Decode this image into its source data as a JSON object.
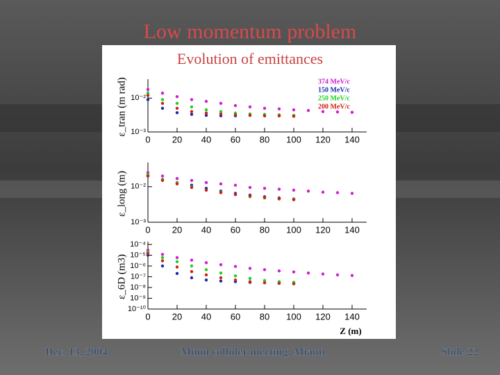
{
  "slide": {
    "title": "Low momentum problem",
    "footer": [
      "Dec. 13, 2004",
      "Muon collider meeting, Miami",
      "Slide 22"
    ]
  },
  "chart_data": [
    {
      "type": "line",
      "title": "Evolution of emittances",
      "ylabel": "ε_tran (m rad)",
      "log_y": true,
      "x": [
        0,
        10,
        20,
        30,
        40,
        50,
        60,
        70,
        80,
        90,
        100,
        110,
        120,
        130,
        140
      ],
      "xlim": [
        0,
        150
      ],
      "xticks": [
        0,
        20,
        40,
        60,
        80,
        100,
        120,
        140
      ],
      "ylim": [
        0.001,
        0.03
      ],
      "yticks": [
        {
          "value": 0.01,
          "label": "10⁻²"
        },
        {
          "value": 0.001,
          "label": "10⁻³"
        }
      ],
      "legend": "upper right",
      "series": [
        {
          "name": "374 MeV/c",
          "color": "#d020d0",
          "values": [
            0.018,
            0.014,
            0.011,
            0.009,
            0.008,
            0.007,
            0.006,
            0.0055,
            0.005,
            0.0048,
            0.0045,
            0.0043,
            0.004,
            0.0039,
            0.0038
          ]
        },
        {
          "name": "150 MeV/c",
          "color": "#1a2ab0",
          "values": [
            0.009,
            0.005,
            0.0037,
            0.0033,
            0.0031,
            0.003,
            0.003,
            0.0031,
            0.003,
            0.003,
            0.003,
            null,
            null,
            null,
            null
          ]
        },
        {
          "name": "250 MeV/c",
          "color": "#20d020",
          "values": [
            0.014,
            0.009,
            0.007,
            0.0055,
            0.0045,
            0.004,
            0.0036,
            0.0034,
            0.0033,
            0.0032,
            0.0031,
            null,
            null,
            null,
            null
          ]
        },
        {
          "name": "200 MeV/c",
          "color": "#d02010",
          "values": [
            0.012,
            0.007,
            0.005,
            0.004,
            0.0036,
            0.0034,
            0.0032,
            0.0031,
            0.003,
            0.003,
            0.0029,
            null,
            null,
            null,
            null
          ]
        }
      ]
    },
    {
      "type": "line",
      "ylabel": "ε_long (m)",
      "log_y": true,
      "x": [
        0,
        10,
        20,
        30,
        40,
        50,
        60,
        70,
        80,
        90,
        100,
        110,
        120,
        130,
        140
      ],
      "xlim": [
        0,
        150
      ],
      "xticks": [
        0,
        20,
        40,
        60,
        80,
        100,
        120,
        140
      ],
      "ylim": [
        0.001,
        0.04
      ],
      "yticks": [
        {
          "value": 0.01,
          "label": "10⁻²"
        },
        {
          "value": 0.001,
          "label": "10⁻³"
        }
      ],
      "series": [
        {
          "color": "#d020d0",
          "values": [
            0.025,
            0.02,
            0.017,
            0.015,
            0.013,
            0.012,
            0.011,
            0.0095,
            0.009,
            0.0085,
            0.008,
            0.0075,
            0.007,
            0.0068,
            0.0065
          ]
        },
        {
          "color": "#1a2ab0",
          "values": [
            0.02,
            0.016,
            0.013,
            0.011,
            0.009,
            0.0075,
            0.0065,
            0.0058,
            0.0052,
            0.0048,
            0.0045,
            null,
            null,
            null,
            null
          ]
        },
        {
          "color": "#20d020",
          "values": [
            0.022,
            0.016,
            0.013,
            0.01,
            0.008,
            0.007,
            0.006,
            0.0052,
            0.0048,
            0.0045,
            0.0044,
            null,
            null,
            null,
            null
          ]
        },
        {
          "color": "#d02010",
          "values": [
            0.02,
            0.015,
            0.012,
            0.0095,
            0.008,
            0.0068,
            0.006,
            0.0055,
            0.005,
            0.0046,
            0.0043,
            null,
            null,
            null,
            null
          ]
        }
      ]
    },
    {
      "type": "line",
      "ylabel": "ε_6D (m3)",
      "xlabel": "Z (m)",
      "log_y": true,
      "x": [
        0,
        10,
        20,
        30,
        40,
        50,
        60,
        70,
        80,
        90,
        100,
        110,
        120,
        130,
        140
      ],
      "xlim": [
        0,
        150
      ],
      "xticks": [
        0,
        20,
        40,
        60,
        80,
        100,
        120,
        140
      ],
      "ylim": [
        1e-10,
        0.0001
      ],
      "yticks": [
        {
          "value": 0.0001,
          "label": "10⁻⁴"
        },
        {
          "value": 1e-05,
          "label": "10⁻⁵"
        },
        {
          "value": 1e-06,
          "label": "10⁻⁶"
        },
        {
          "value": 1e-07,
          "label": "10⁻⁷"
        },
        {
          "value": 1e-08,
          "label": "10⁻⁸"
        },
        {
          "value": 1e-09,
          "label": "10⁻⁹"
        },
        {
          "value": 1e-10,
          "label": "10⁻¹⁰"
        }
      ],
      "series": [
        {
          "color": "#d020d0",
          "values": [
            3e-05,
            1.2e-05,
            6e-06,
            3.5e-06,
            2e-06,
            1.3e-06,
            9e-07,
            6e-07,
            4.5e-07,
            3.5e-07,
            2.8e-07,
            2.2e-07,
            1.8e-07,
            1.5e-07,
            1.3e-07
          ]
        },
        {
          "color": "#1a2ab0",
          "values": [
            1e-05,
            1e-06,
            2e-07,
            8e-08,
            5e-08,
            4e-08,
            3.5e-08,
            3e-08,
            2.8e-08,
            2.6e-08,
            2.5e-08,
            null,
            null,
            null,
            null
          ]
        },
        {
          "color": "#20d020",
          "values": [
            2e-05,
            6e-06,
            2.5e-06,
            1e-06,
            4.5e-07,
            2.2e-07,
            1.2e-07,
            7e-08,
            4.5e-08,
            3.5e-08,
            3e-08,
            null,
            null,
            null,
            null
          ]
        },
        {
          "color": "#d02010",
          "values": [
            1.5e-05,
            3e-06,
            8e-07,
            3e-07,
            1.5e-07,
            8e-08,
            5e-08,
            3.5e-08,
            2.8e-08,
            2.4e-08,
            2.2e-08,
            null,
            null,
            null,
            null
          ]
        }
      ]
    }
  ]
}
